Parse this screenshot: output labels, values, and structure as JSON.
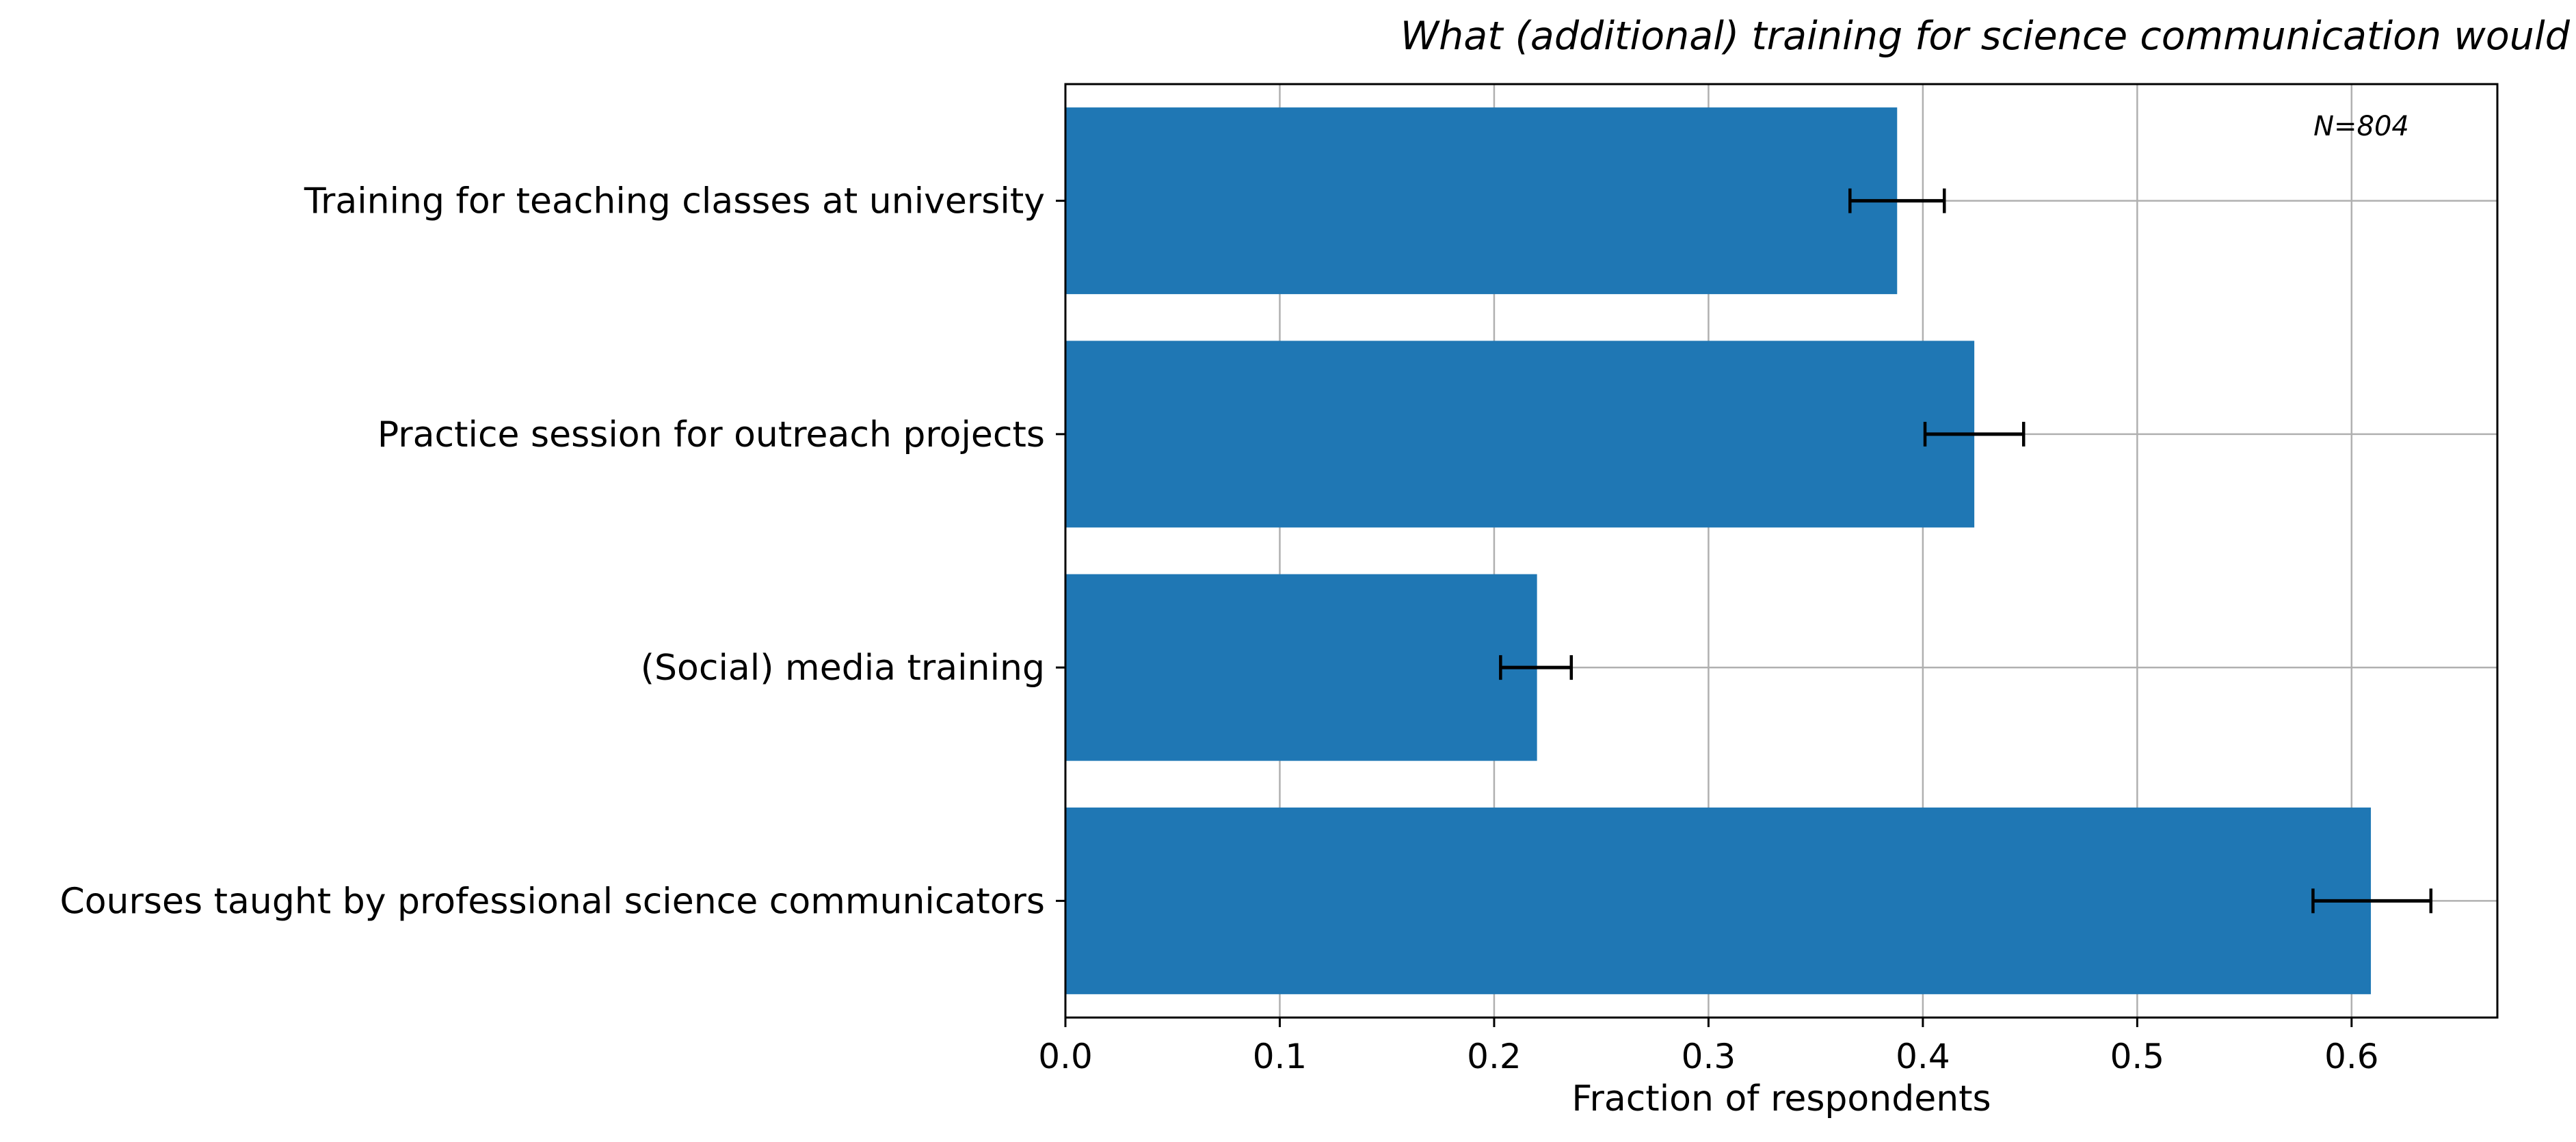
{
  "chart_data": {
    "type": "bar",
    "orientation": "horizontal",
    "title": "What (additional) training for science communication would you like to have?",
    "xlabel": "Fraction of respondents",
    "ylabel": "",
    "annotation": "N=804",
    "categories": [
      "Training for teaching classes at university",
      "Practice session for outreach projects",
      "(Social) media training",
      "Courses taught by professional science communicators"
    ],
    "values": [
      0.388,
      0.424,
      0.22,
      0.609
    ],
    "error_low": [
      0.366,
      0.401,
      0.203,
      0.582
    ],
    "error_high": [
      0.41,
      0.447,
      0.236,
      0.637
    ],
    "xlim": [
      0.0,
      0.668
    ],
    "xticks": [
      0.0,
      0.1,
      0.2,
      0.3,
      0.4,
      0.5,
      0.6
    ],
    "xtick_labels": [
      "0.0",
      "0.1",
      "0.2",
      "0.3",
      "0.4",
      "0.5",
      "0.6"
    ],
    "grid": true,
    "legend": "none",
    "colors": {
      "bar": "#1f77b4",
      "error_bar": "#000000",
      "grid": "#b0b0b0",
      "axes": "#000000"
    }
  }
}
